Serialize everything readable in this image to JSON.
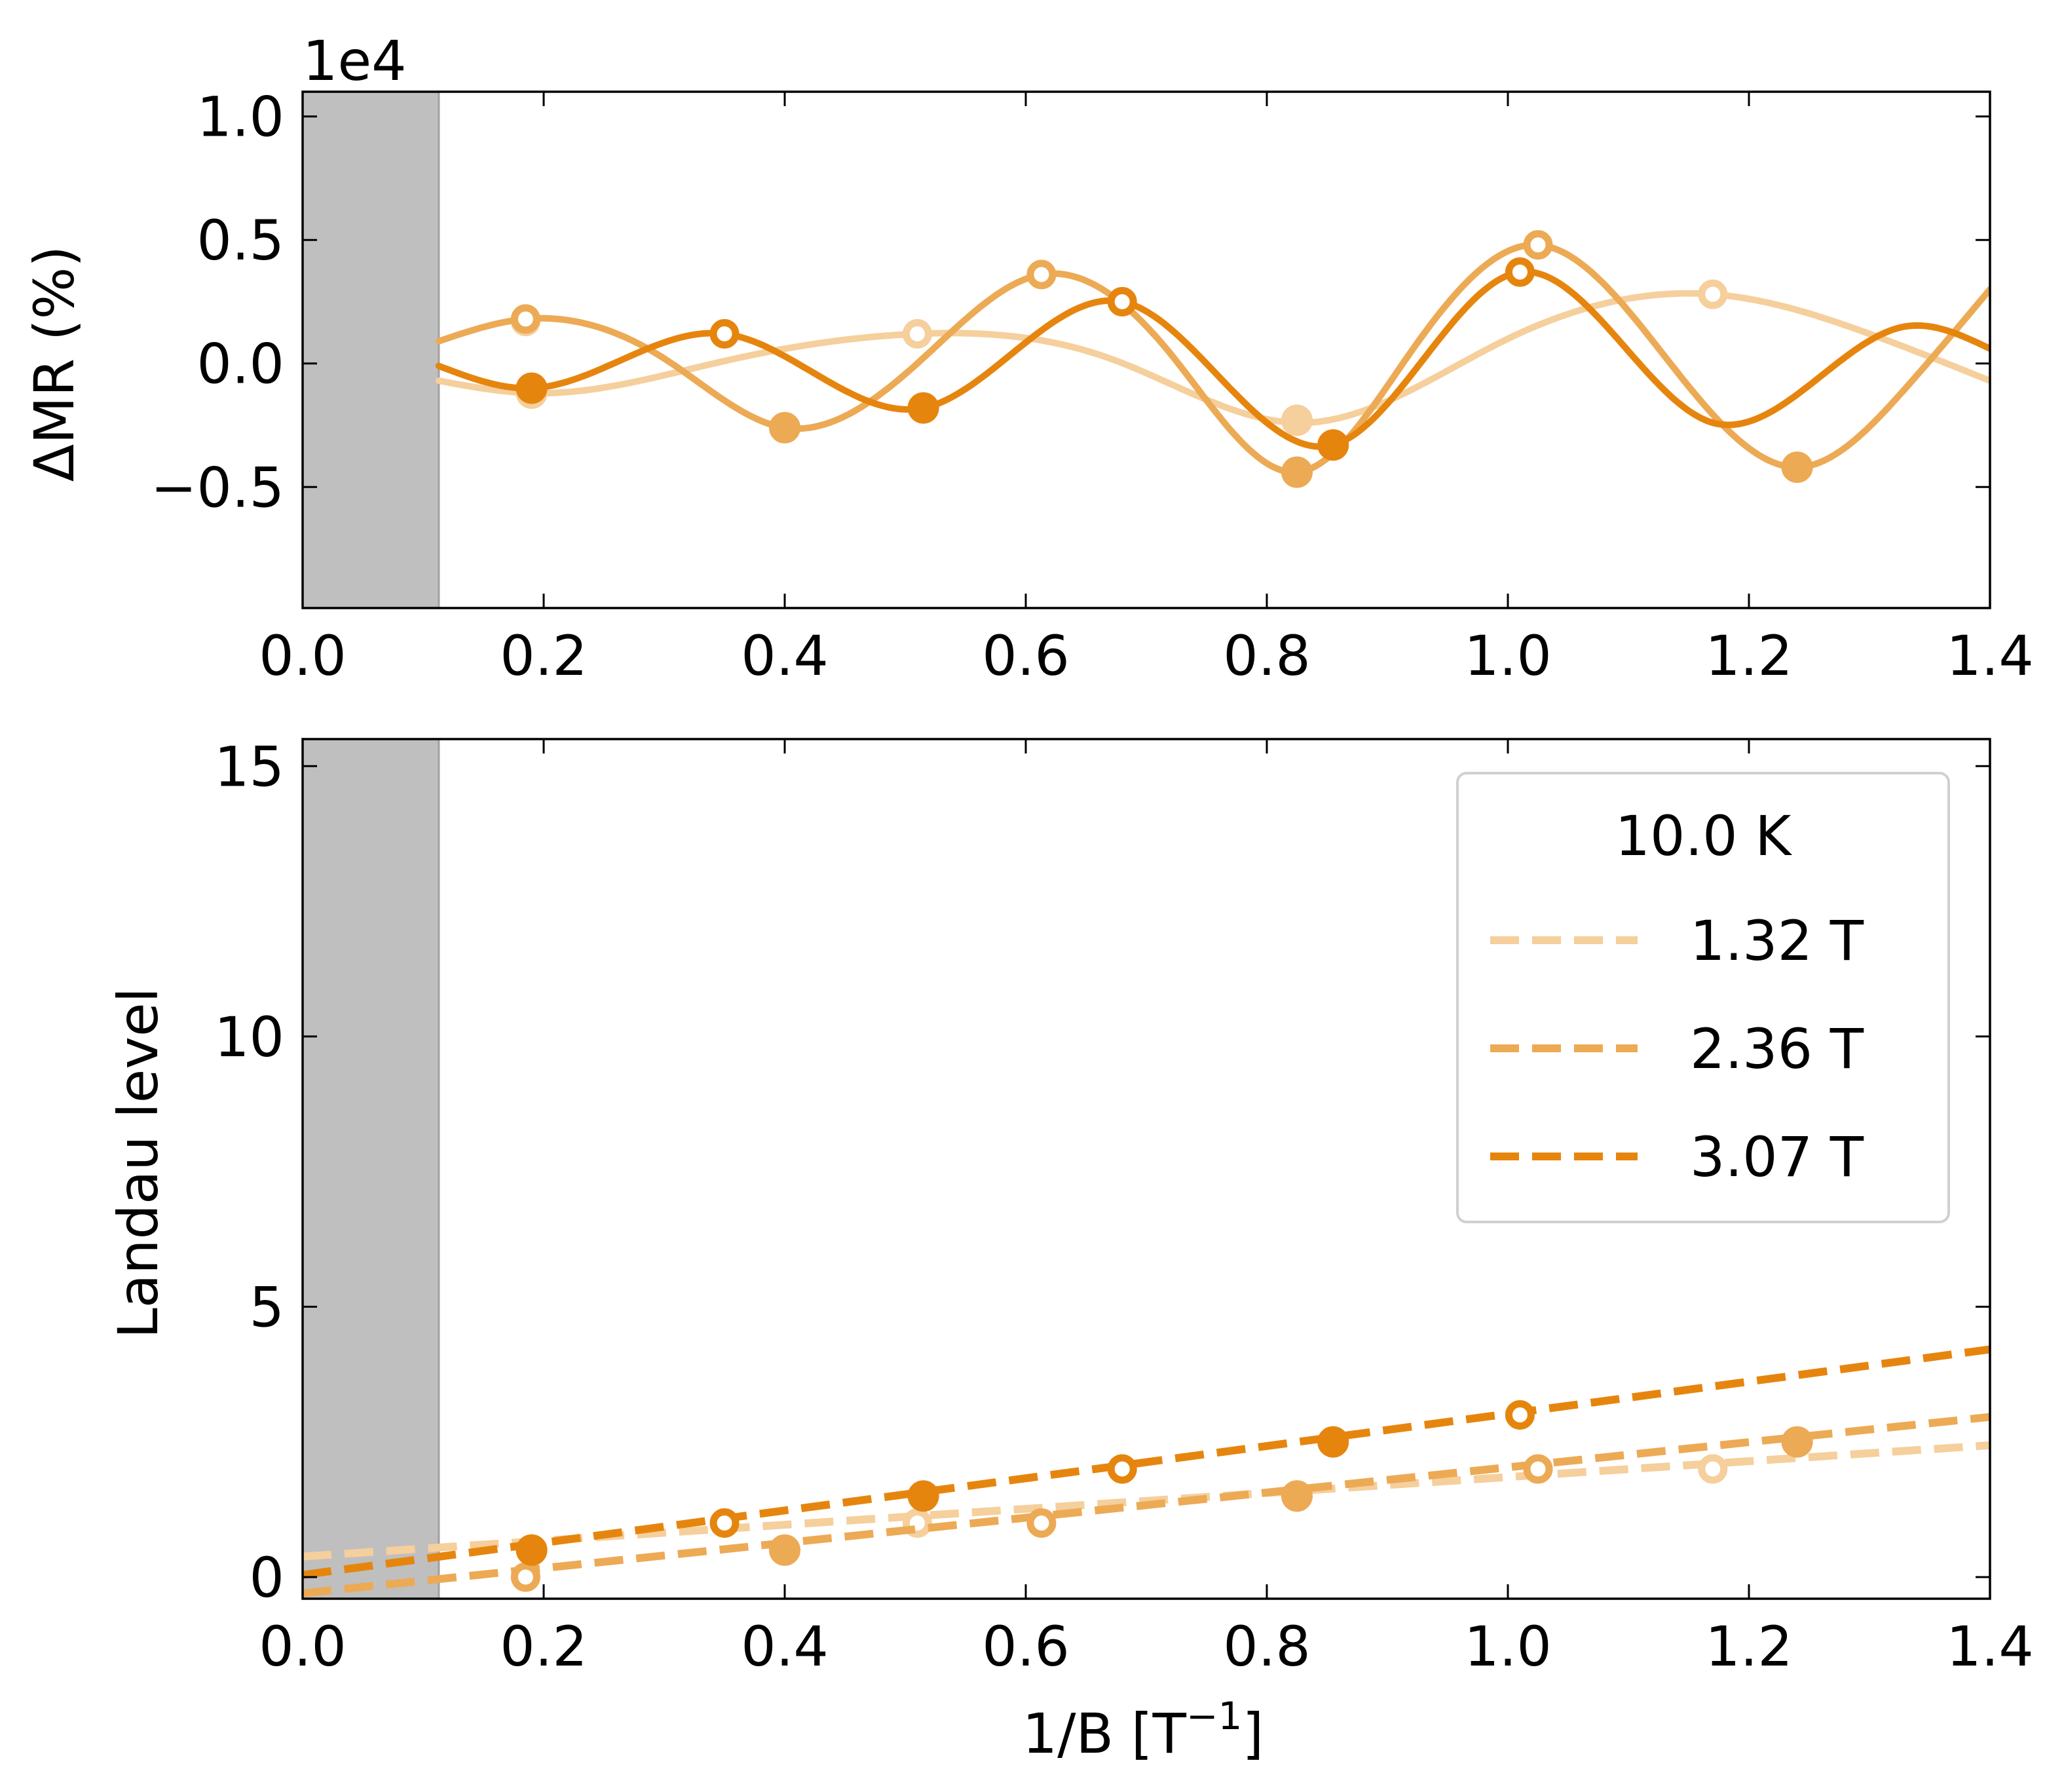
{
  "colors": {
    "c1": "#f5cf9c",
    "c2": "#ecaa55",
    "c3": "#e6850e",
    "shade": "#bfbfbf"
  },
  "chart_data": [
    {
      "type": "line",
      "ylabel": "ΔMR (%)",
      "offset_text": "1e4",
      "xlim": [
        0,
        1.4
      ],
      "ylim": [
        -0.99,
        1.1
      ],
      "xticks": [
        0.0,
        0.2,
        0.4,
        0.6,
        0.8,
        1.0,
        1.2,
        1.4
      ],
      "xtick_labels": [
        "0.0",
        "0.2",
        "0.4",
        "0.6",
        "0.8",
        "1.0",
        "1.2",
        "1.4"
      ],
      "yticks": [
        -0.5,
        0.0,
        0.5,
        1.0
      ],
      "ytick_labels": [
        "−0.5",
        "0.0",
        "0.5",
        "1.0"
      ],
      "shaded_x": [
        0,
        0.113
      ],
      "series": [
        {
          "name": "1.32 T",
          "color": "#f5cf9c",
          "x": [
            0.113,
            0.19,
            0.35,
            0.51,
            0.67,
            0.83,
            1.0,
            1.17,
            1.3,
            1.4
          ],
          "y": [
            -0.07,
            -0.12,
            0.01,
            0.12,
            0.02,
            -0.24,
            0.1,
            0.28,
            0.12,
            -0.07
          ],
          "max_points": [
            {
              "x": 0.185,
              "y": 0.17
            },
            {
              "x": 0.51,
              "y": 0.12
            },
            {
              "x": 1.17,
              "y": 0.28
            }
          ],
          "min_points": [
            {
              "x": 0.19,
              "y": -0.12
            },
            {
              "x": 0.825,
              "y": -0.23
            }
          ]
        },
        {
          "name": "2.36 T",
          "color": "#ecaa55",
          "x": [
            0.113,
            0.185,
            0.3,
            0.4,
            0.51,
            0.613,
            0.72,
            0.825,
            0.92,
            1.025,
            1.13,
            1.24,
            1.33,
            1.4
          ],
          "y": [
            0.09,
            0.18,
            0.02,
            -0.26,
            0.0,
            0.36,
            0.04,
            -0.44,
            0.05,
            0.48,
            0.03,
            -0.42,
            -0.1,
            0.3
          ],
          "max_points": [
            {
              "x": 0.185,
              "y": 0.18
            },
            {
              "x": 0.613,
              "y": 0.36
            },
            {
              "x": 1.025,
              "y": 0.48
            }
          ],
          "min_points": [
            {
              "x": 0.4,
              "y": -0.26
            },
            {
              "x": 0.825,
              "y": -0.44
            },
            {
              "x": 1.24,
              "y": -0.42
            }
          ]
        },
        {
          "name": "3.07 T",
          "color": "#e6850e",
          "x": [
            0.113,
            0.19,
            0.35,
            0.515,
            0.68,
            0.855,
            1.01,
            1.17,
            1.33,
            1.4
          ],
          "y": [
            -0.01,
            -0.1,
            0.12,
            -0.18,
            0.25,
            -0.33,
            0.37,
            -0.24,
            0.15,
            0.06
          ],
          "max_points": [
            {
              "x": 0.35,
              "y": 0.12
            },
            {
              "x": 0.68,
              "y": 0.25
            },
            {
              "x": 1.01,
              "y": 0.37
            }
          ],
          "min_points": [
            {
              "x": 0.19,
              "y": -0.1
            },
            {
              "x": 0.515,
              "y": -0.18
            },
            {
              "x": 0.855,
              "y": -0.33
            }
          ]
        }
      ]
    },
    {
      "type": "scatter",
      "xlabel_main": "1/B [T",
      "xlabel_sup": "−1",
      "xlabel_end": "]",
      "ylabel": "Landau level",
      "xlim": [
        0,
        1.4
      ],
      "ylim": [
        -0.4,
        15.5
      ],
      "xticks": [
        0.0,
        0.2,
        0.4,
        0.6,
        0.8,
        1.0,
        1.2,
        1.4
      ],
      "xtick_labels": [
        "0.0",
        "0.2",
        "0.4",
        "0.6",
        "0.8",
        "1.0",
        "1.2",
        "1.4"
      ],
      "yticks": [
        0,
        5,
        10,
        15
      ],
      "ytick_labels": [
        "0",
        "5",
        "10",
        "15"
      ],
      "shaded_x": [
        0,
        0.113
      ],
      "legend": {
        "title": "10.0 K",
        "placement": "upper right"
      },
      "series": [
        {
          "name": "1.32 T",
          "color": "#f5cf9c",
          "fit": {
            "intercept": 0.38,
            "slope": 1.47
          },
          "open_points": [
            {
              "x": 0.185,
              "y": 0.0
            },
            {
              "x": 0.51,
              "y": 1.0
            },
            {
              "x": 1.17,
              "y": 2.0
            }
          ],
          "filled_points": [
            {
              "x": 0.19,
              "y": 0.5
            },
            {
              "x": 0.825,
              "y": 1.5
            }
          ]
        },
        {
          "name": "2.36 T",
          "color": "#ecaa55",
          "fit": {
            "intercept": -0.3,
            "slope": 2.33
          },
          "open_points": [
            {
              "x": 0.185,
              "y": 0.0
            },
            {
              "x": 0.613,
              "y": 1.0
            },
            {
              "x": 1.025,
              "y": 2.0
            }
          ],
          "filled_points": [
            {
              "x": 0.4,
              "y": 0.5
            },
            {
              "x": 0.825,
              "y": 1.5
            },
            {
              "x": 1.24,
              "y": 2.5
            }
          ]
        },
        {
          "name": "3.07 T",
          "color": "#e6850e",
          "fit": {
            "intercept": 0.04,
            "slope": 2.98
          },
          "open_points": [
            {
              "x": 0.35,
              "y": 1.0
            },
            {
              "x": 0.68,
              "y": 2.0
            },
            {
              "x": 1.01,
              "y": 3.0
            }
          ],
          "filled_points": [
            {
              "x": 0.19,
              "y": 0.5
            },
            {
              "x": 0.515,
              "y": 1.5
            },
            {
              "x": 0.855,
              "y": 2.5
            }
          ]
        }
      ]
    }
  ]
}
